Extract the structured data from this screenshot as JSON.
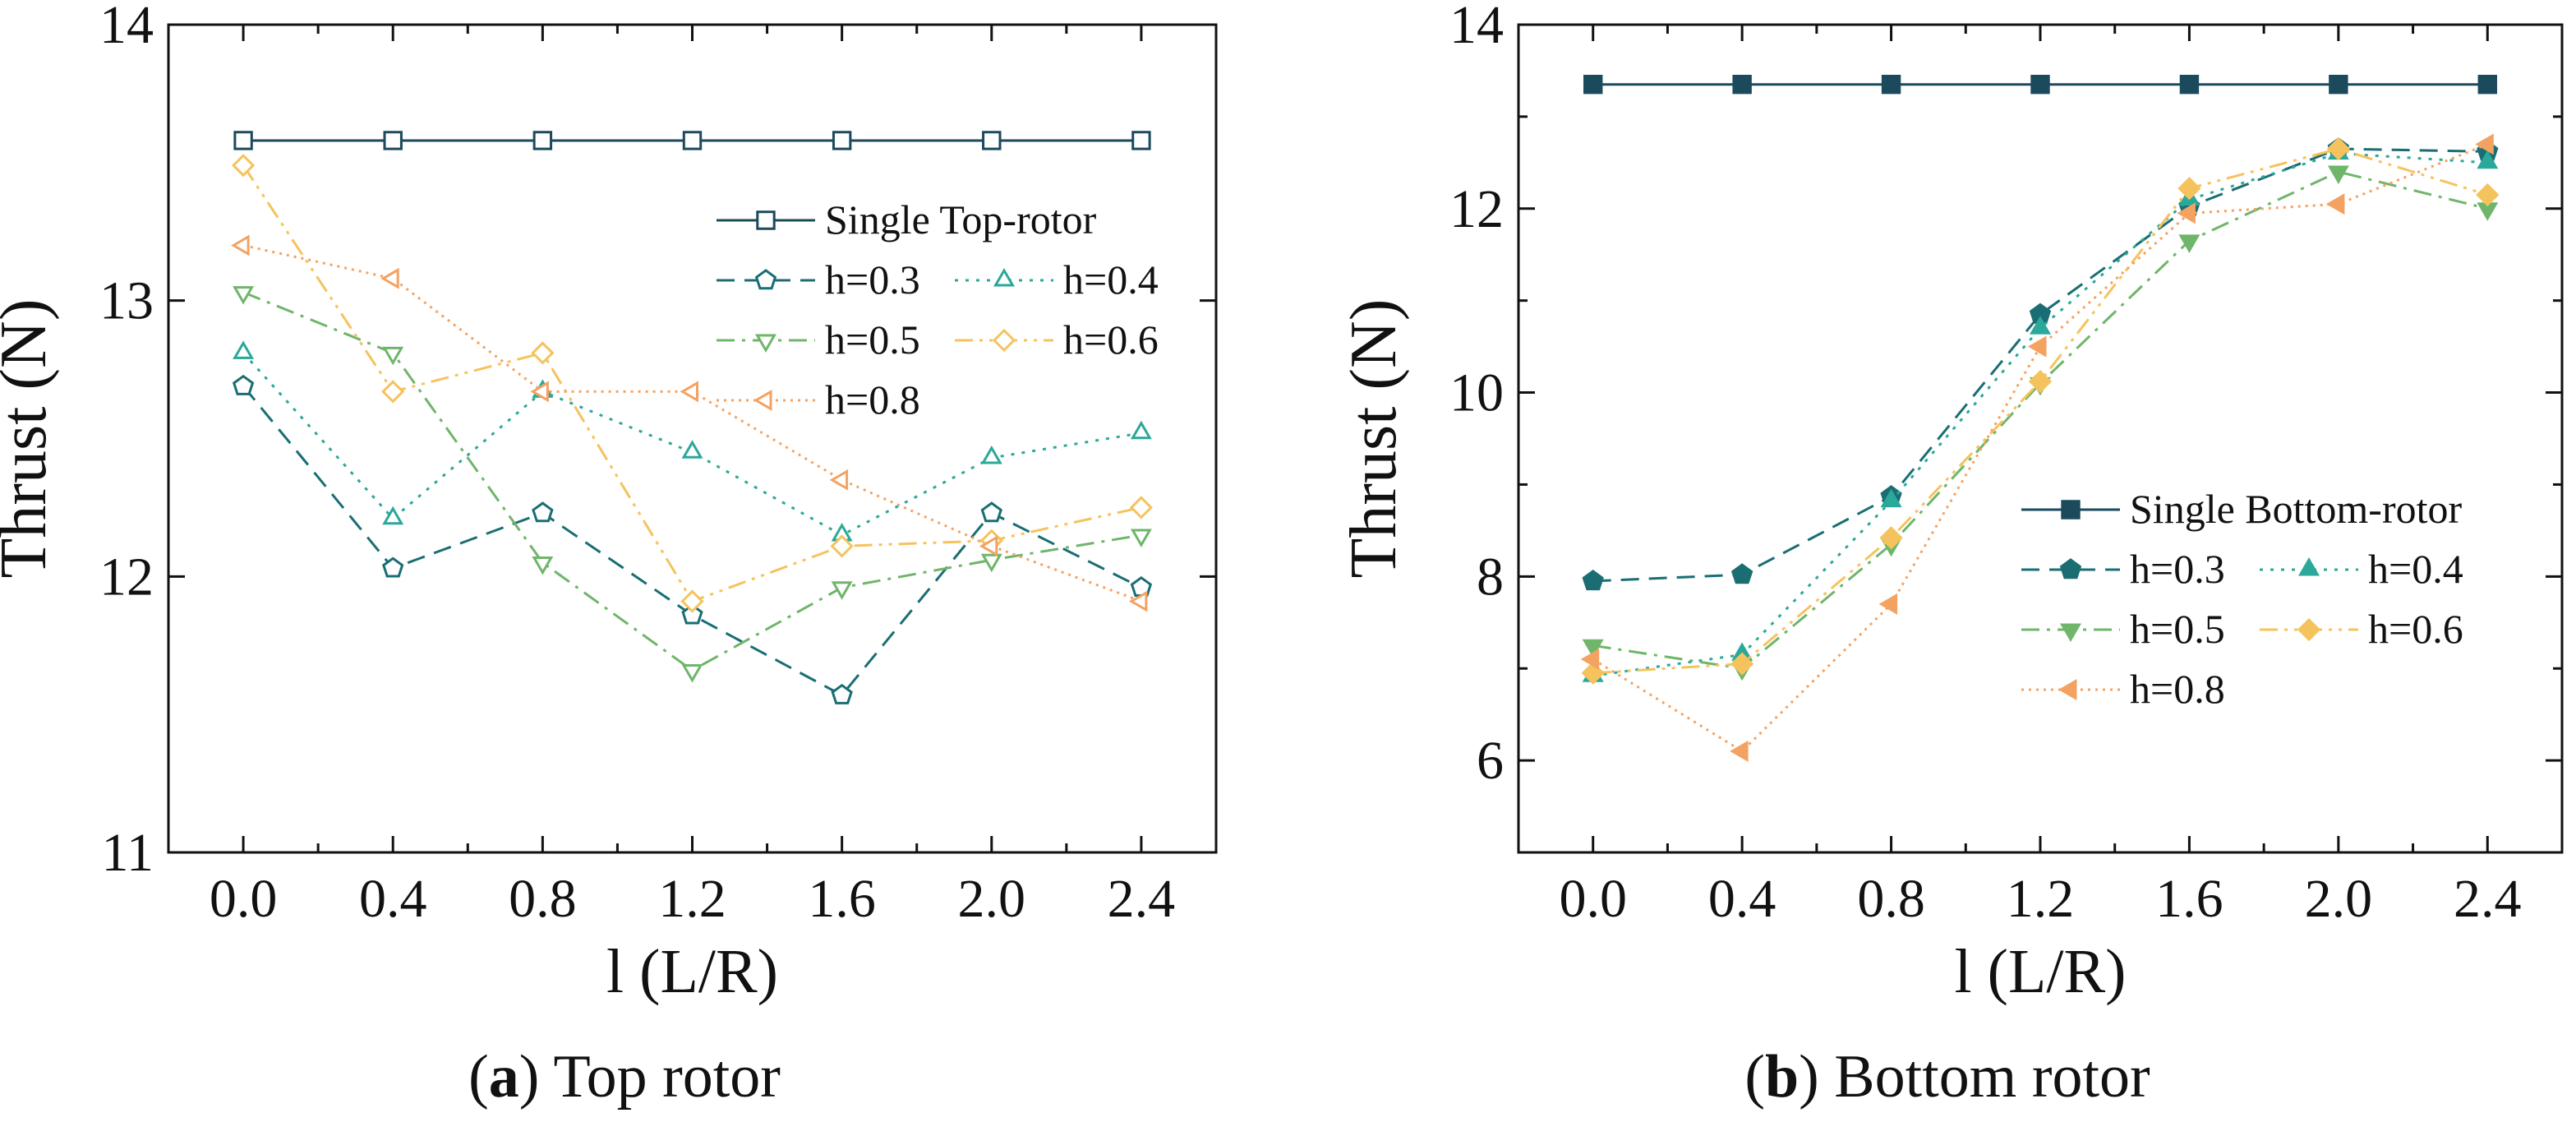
{
  "chart_data": [
    {
      "type": "line",
      "caption_letter": "a",
      "caption_text": ") Top rotor",
      "caption_open": "(",
      "xlabel": "l (L/R)",
      "ylabel": "Thrust (N)",
      "x": [
        0.0,
        0.4,
        0.8,
        1.2,
        1.6,
        2.0,
        2.4
      ],
      "xticks": [
        "0.0",
        "0.4",
        "0.8",
        "1.2",
        "1.6",
        "2.0",
        "2.4"
      ],
      "xlim": [
        -0.2,
        2.6
      ],
      "ylim": [
        11,
        14
      ],
      "yticks": [
        "11",
        "12",
        "13",
        "14"
      ],
      "legend_position": "top-right",
      "filled_markers": false,
      "series": [
        {
          "name": "Single Top-rotor",
          "color": "#1b4a5c",
          "dash": "solid",
          "marker": "square",
          "values": [
            13.58,
            13.58,
            13.58,
            13.58,
            13.58,
            13.58,
            13.58
          ]
        },
        {
          "name": "h=0.3",
          "color": "#1a6e73",
          "dash": "dash",
          "marker": "pentagon",
          "values": [
            12.69,
            12.03,
            12.23,
            11.86,
            11.57,
            12.23,
            11.96
          ]
        },
        {
          "name": "h=0.4",
          "color": "#2aa89a",
          "dash": "dot",
          "marker": "triangle-up",
          "values": [
            12.81,
            12.21,
            12.67,
            12.45,
            12.15,
            12.43,
            12.52
          ]
        },
        {
          "name": "h=0.5",
          "color": "#6fb56a",
          "dash": "dashdot",
          "marker": "triangle-down",
          "values": [
            13.03,
            12.81,
            12.05,
            11.66,
            11.96,
            12.06,
            12.15
          ]
        },
        {
          "name": "h=0.6",
          "color": "#f5c35d",
          "dash": "dashdotdot",
          "marker": "diamond",
          "values": [
            13.49,
            12.67,
            12.81,
            11.91,
            12.11,
            12.13,
            12.25
          ]
        },
        {
          "name": "h=0.8",
          "color": "#f4a261",
          "dash": "shortdot",
          "marker": "triangle-left",
          "values": [
            13.2,
            13.08,
            12.67,
            12.67,
            12.35,
            12.11,
            11.91
          ]
        }
      ]
    },
    {
      "type": "line",
      "caption_letter": "b",
      "caption_text": ") Bottom rotor",
      "caption_open": "(",
      "xlabel": "l (L/R)",
      "ylabel": "Thrust (N)",
      "x": [
        0.0,
        0.4,
        0.8,
        1.2,
        1.6,
        2.0,
        2.4
      ],
      "xticks": [
        "0.0",
        "0.4",
        "0.8",
        "1.2",
        "1.6",
        "2.0",
        "2.4"
      ],
      "xlim": [
        -0.2,
        2.6
      ],
      "ylim": [
        5,
        14
      ],
      "yticks": [
        "6",
        "8",
        "10",
        "12",
        "14"
      ],
      "yminor": true,
      "legend_position": "right",
      "filled_markers": true,
      "series": [
        {
          "name": "Single Bottom-rotor",
          "color": "#1b4a5c",
          "dash": "solid",
          "marker": "square",
          "values": [
            13.35,
            13.35,
            13.35,
            13.35,
            13.35,
            13.35,
            13.35
          ]
        },
        {
          "name": "h=0.3",
          "color": "#1a6e73",
          "dash": "dash",
          "marker": "pentagon",
          "values": [
            7.95,
            8.02,
            8.87,
            10.85,
            12.02,
            12.65,
            12.62
          ]
        },
        {
          "name": "h=0.4",
          "color": "#2aa89a",
          "dash": "dot",
          "marker": "triangle-up",
          "values": [
            6.92,
            7.15,
            8.82,
            10.7,
            12.1,
            12.6,
            12.5
          ]
        },
        {
          "name": "h=0.5",
          "color": "#6fb56a",
          "dash": "dashdot",
          "marker": "triangle-down",
          "values": [
            7.25,
            7.0,
            8.35,
            10.1,
            11.65,
            12.4,
            12.0
          ]
        },
        {
          "name": "h=0.6",
          "color": "#f5c35d",
          "dash": "dashdotdot",
          "marker": "diamond",
          "values": [
            6.95,
            7.05,
            8.42,
            10.12,
            12.22,
            12.65,
            12.15
          ]
        },
        {
          "name": "h=0.8",
          "color": "#f4a261",
          "dash": "shortdot",
          "marker": "triangle-left",
          "values": [
            7.1,
            6.1,
            7.7,
            10.5,
            11.95,
            12.05,
            12.7
          ]
        }
      ]
    }
  ]
}
